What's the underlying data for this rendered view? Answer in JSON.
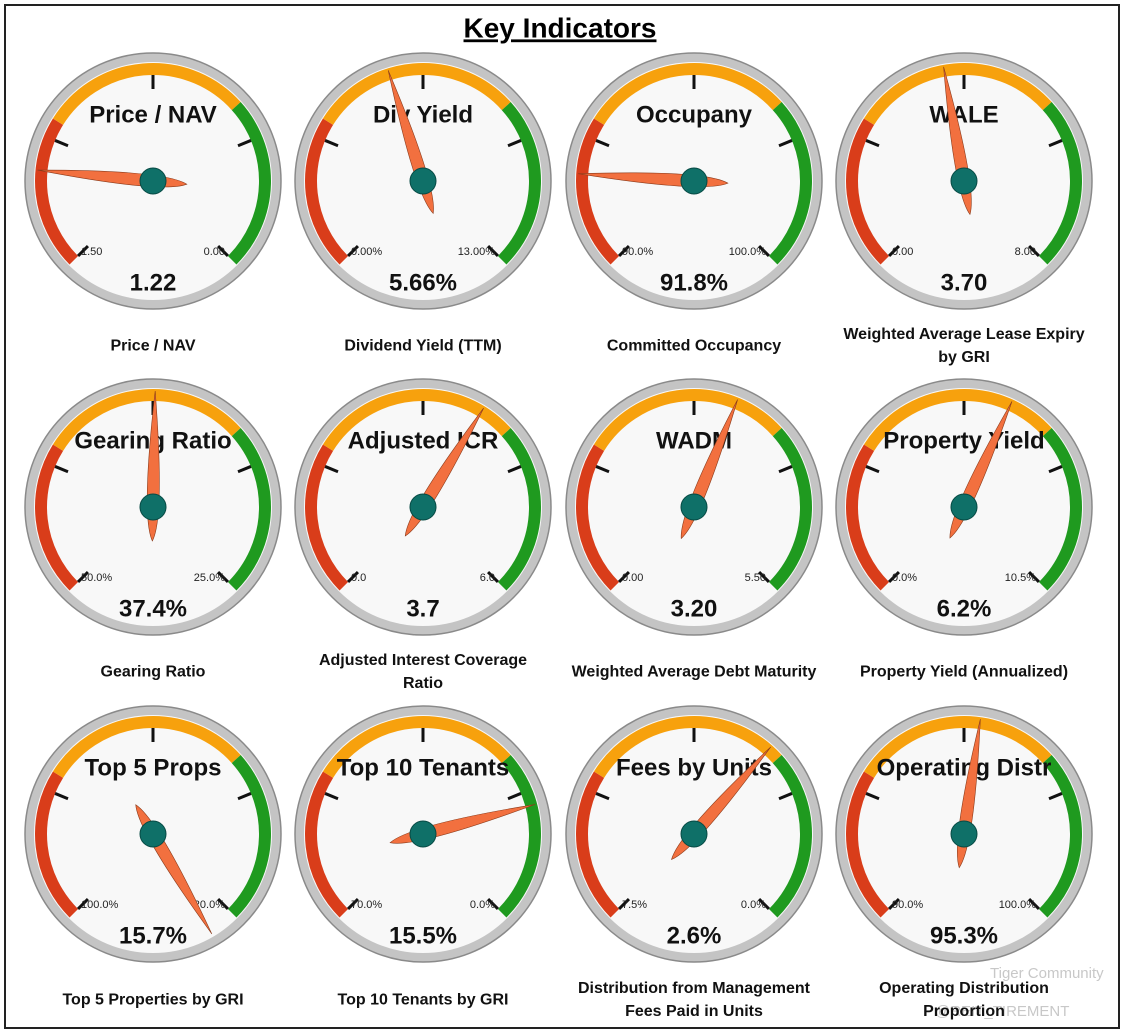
{
  "title": "Key Indicators",
  "watermark": [
    "Tiger Community",
    "@REIT_TIREMENT"
  ],
  "band_colors": [
    "#d93d1a",
    "#f7a10d",
    "#1f9a1f"
  ],
  "needle_color": "#f2703f",
  "hub_color": "#0f7068",
  "chart_data": [
    {
      "type": "gauge",
      "title": "Price / NAV",
      "caption": "Price / NAV",
      "min": {
        "value": 1.5,
        "label": "1.50"
      },
      "max": {
        "value": 0,
        "label": "0.00"
      },
      "value": 1.22
    },
    {
      "type": "gauge",
      "title": "Div Yield",
      "caption": "Dividend Yield (TTM)",
      "min": {
        "value": 0,
        "label": "0.00%"
      },
      "max": {
        "value": 13,
        "label": "13.00%"
      },
      "value": 5.66,
      "value_label": "5.66%"
    },
    {
      "type": "gauge",
      "title": "Occupany",
      "caption": "Committed Occupancy",
      "min": {
        "value": 90,
        "label": "90.0%"
      },
      "max": {
        "value": 100,
        "label": "100.0%"
      },
      "value": 91.8,
      "value_label": "91.8%"
    },
    {
      "type": "gauge",
      "title": "WALE",
      "caption": "Weighted Average Lease Expiry by GRI",
      "min": {
        "value": 0,
        "label": "0.00"
      },
      "max": {
        "value": 8,
        "label": "8.00"
      },
      "value": 3.7,
      "value_label": "3.70"
    },
    {
      "type": "gauge",
      "title": "Gearing Ratio",
      "caption": "Gearing Ratio",
      "min": {
        "value": 50,
        "label": "50.0%"
      },
      "max": {
        "value": 25,
        "label": "25.0%"
      },
      "value": 37.4,
      "value_label": "37.4%"
    },
    {
      "type": "gauge",
      "title": "Adjusted ICR",
      "caption": "Adjusted Interest Coverage Ratio",
      "min": {
        "value": 0,
        "label": "0.0"
      },
      "max": {
        "value": 6,
        "label": "6.0"
      },
      "value": 3.7
    },
    {
      "type": "gauge",
      "title": "WADM",
      "caption": "Weighted Average Debt Maturity",
      "min": {
        "value": 0,
        "label": "0.00"
      },
      "max": {
        "value": 5.5,
        "label": "5.50"
      },
      "value": 3.2,
      "value_label": "3.20"
    },
    {
      "type": "gauge",
      "title": "Property Yield",
      "caption": "Property Yield (Annualized)",
      "min": {
        "value": 0,
        "label": "0.0%"
      },
      "max": {
        "value": 10.5,
        "label": "10.5%"
      },
      "value": 6.2,
      "value_label": "6.2%"
    },
    {
      "type": "gauge",
      "title": "Top 5 Props",
      "caption": "Top 5 Properties by GRI",
      "min": {
        "value": 100,
        "label": "100.0%"
      },
      "max": {
        "value": 20,
        "label": "20.0%"
      },
      "value": 15.7,
      "value_label": "15.7%"
    },
    {
      "type": "gauge",
      "title": "Top 10 Tenants",
      "caption": "Top 10 Tenants by GRI",
      "min": {
        "value": 70,
        "label": "70.0%"
      },
      "max": {
        "value": 0,
        "label": "0.0%"
      },
      "value": 15.5,
      "value_label": "15.5%"
    },
    {
      "type": "gauge",
      "title": "Fees by Units",
      "caption": "Distribution from Management Fees Paid in Units",
      "min": {
        "value": 7.5,
        "label": "7.5%"
      },
      "max": {
        "value": 0,
        "label": "0.0%"
      },
      "value": 2.6,
      "value_label": "2.6%"
    },
    {
      "type": "gauge",
      "title": "Operating Distr",
      "caption": "Operating Distribution Proportion",
      "min": {
        "value": 90,
        "label": "90.0%"
      },
      "max": {
        "value": 100,
        "label": "100.0%"
      },
      "value": 95.3,
      "value_label": "95.3%"
    }
  ]
}
